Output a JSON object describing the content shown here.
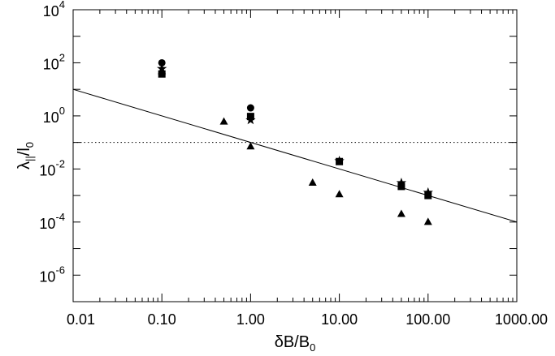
{
  "chart_data": {
    "type": "scatter",
    "title": "",
    "xlabel": "δB/B0",
    "xlabel_main": "δB/B",
    "xlabel_sub": "0",
    "ylabel": "λ||/l0",
    "ylabel_parts": {
      "lambda": "λ",
      "sub1": "||",
      "slash": "/l",
      "sub2": "0"
    },
    "xscale": "log",
    "yscale": "log",
    "xlim": [
      0.01,
      1000
    ],
    "ylim": [
      1e-07,
      10000
    ],
    "x_ticks": [
      {
        "value": 0.01,
        "label": "0.01"
      },
      {
        "value": 0.1,
        "label": "0.10"
      },
      {
        "value": 1,
        "label": "1.00"
      },
      {
        "value": 10,
        "label": "10.00"
      },
      {
        "value": 100,
        "label": "100.00"
      },
      {
        "value": 1000,
        "label": "1000.00"
      }
    ],
    "y_ticks": [
      {
        "value": 1e-06,
        "base": "10",
        "exp": "-6"
      },
      {
        "value": 0.0001,
        "base": "10",
        "exp": "-4"
      },
      {
        "value": 0.01,
        "base": "10",
        "exp": "-2"
      },
      {
        "value": 1,
        "base": "10",
        "exp": "0"
      },
      {
        "value": 100,
        "base": "10",
        "exp": "2"
      },
      {
        "value": 10000,
        "base": "10",
        "exp": "4"
      }
    ],
    "grid": false,
    "legend": "none",
    "series": [
      {
        "marker": "circle",
        "points": [
          {
            "x": 0.1,
            "y": 100
          },
          {
            "x": 1,
            "y": 2
          }
        ]
      },
      {
        "marker": "star",
        "points": [
          {
            "x": 0.1,
            "y": 60
          },
          {
            "x": 1,
            "y": 0.7
          },
          {
            "x": 10,
            "y": 0.02
          },
          {
            "x": 50,
            "y": 0.003
          },
          {
            "x": 100,
            "y": 0.0013
          }
        ]
      },
      {
        "marker": "square",
        "points": [
          {
            "x": 0.1,
            "y": 38
          },
          {
            "x": 1,
            "y": 0.95
          },
          {
            "x": 10,
            "y": 0.019
          },
          {
            "x": 50,
            "y": 0.0022
          },
          {
            "x": 100,
            "y": 0.001
          }
        ]
      },
      {
        "marker": "triangle",
        "points": [
          {
            "x": 0.1,
            "y": 48
          },
          {
            "x": 0.5,
            "y": 0.6
          },
          {
            "x": 1,
            "y": 0.07
          },
          {
            "x": 5,
            "y": 0.003
          },
          {
            "x": 10,
            "y": 0.0011
          },
          {
            "x": 50,
            "y": 0.0002
          },
          {
            "x": 100,
            "y": 0.0001
          }
        ]
      }
    ],
    "reference_lines": [
      {
        "style": "solid",
        "points": [
          {
            "x": 0.01,
            "y": 10
          },
          {
            "x": 1000,
            "y": 0.0001
          }
        ]
      },
      {
        "style": "dotted",
        "points": [
          {
            "x": 0.01,
            "y": 0.1
          },
          {
            "x": 1000,
            "y": 0.1
          }
        ]
      }
    ]
  }
}
